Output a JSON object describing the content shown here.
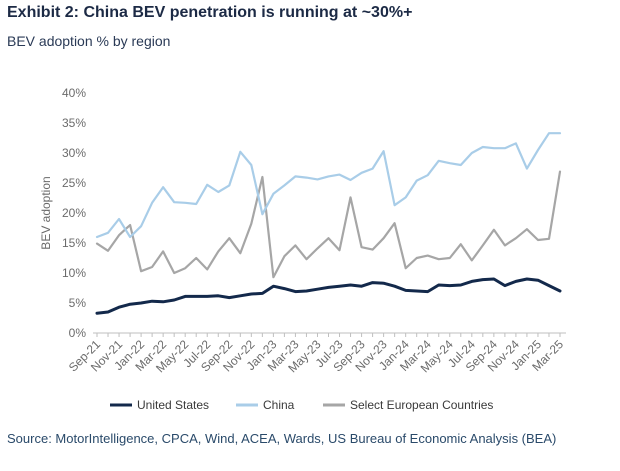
{
  "header": {
    "title": "Exhibit 2: China BEV penetration is running at ~30%+",
    "subtitle": "BEV adoption % by region"
  },
  "footer": {
    "source": "Source: MotorIntelligence, CPCA, Wind, ACEA, Wards, US Bureau of Economic Analysis (BEA)"
  },
  "colors": {
    "united_states": "#13294b",
    "china": "#a9cde8",
    "europe": "#a6a6a6",
    "axis": "#bfbfbf",
    "tick_text": "#6b6b6b"
  },
  "chart_data": {
    "type": "line",
    "title": "",
    "xlabel": "",
    "ylabel": "BEV adoption",
    "ylim": [
      0,
      40
    ],
    "yticks": [
      "0%",
      "5%",
      "10%",
      "15%",
      "20%",
      "25%",
      "30%",
      "35%",
      "40%"
    ],
    "grid": false,
    "legend_position": "bottom",
    "x": [
      "Sep-21",
      "Oct-21",
      "Nov-21",
      "Dec-21",
      "Jan-22",
      "Feb-22",
      "Mar-22",
      "Apr-22",
      "May-22",
      "Jun-22",
      "Jul-22",
      "Aug-22",
      "Sep-22",
      "Oct-22",
      "Nov-22",
      "Dec-22",
      "Jan-23",
      "Feb-23",
      "Mar-23",
      "Apr-23",
      "May-23",
      "Jun-23",
      "Jul-23",
      "Aug-23",
      "Sep-23",
      "Oct-23",
      "Nov-23",
      "Dec-23",
      "Jan-24",
      "Feb-24",
      "Mar-24",
      "Apr-24",
      "May-24",
      "Jun-24",
      "Jul-24",
      "Aug-24",
      "Sep-24",
      "Oct-24",
      "Nov-24",
      "Dec-24",
      "Jan-25",
      "Feb-25",
      "Mar-25"
    ],
    "x_tick_labels": [
      "Sep-21",
      "Nov-21",
      "Jan-22",
      "Mar-22",
      "May-22",
      "Jul-22",
      "Sep-22",
      "Nov-22",
      "Jan-23",
      "Mar-23",
      "May-23",
      "Jul-23",
      "Sep-23",
      "Nov-23",
      "Jan-24",
      "Mar-24",
      "May-24",
      "Jul-24",
      "Sep-24",
      "Nov-24",
      "Jan-25",
      "Mar-25"
    ],
    "series": [
      {
        "name": "United States",
        "color": "#13294b",
        "values": [
          3.3,
          3.5,
          4.3,
          4.8,
          5.0,
          5.3,
          5.2,
          5.5,
          6.1,
          6.1,
          6.1,
          6.2,
          5.9,
          6.2,
          6.5,
          6.6,
          7.8,
          7.4,
          6.9,
          7.0,
          7.3,
          7.6,
          7.8,
          8.0,
          7.8,
          8.4,
          8.3,
          7.8,
          7.1,
          7.0,
          6.9,
          8.0,
          7.9,
          8.0,
          8.6,
          8.9,
          9.0,
          7.9,
          8.6,
          9.0,
          8.8,
          7.9,
          7.0
        ]
      },
      {
        "name": "China",
        "color": "#a9cde8",
        "values": [
          16.0,
          16.7,
          19.0,
          16.0,
          17.8,
          21.7,
          24.3,
          21.8,
          21.7,
          21.5,
          24.7,
          23.5,
          24.6,
          30.2,
          28.0,
          19.8,
          23.2,
          24.6,
          26.1,
          25.9,
          25.6,
          26.1,
          26.4,
          25.5,
          26.7,
          27.4,
          30.3,
          21.3,
          22.6,
          25.4,
          26.3,
          28.7,
          28.3,
          28.0,
          30.0,
          31.0,
          30.8,
          30.8,
          31.6,
          27.4,
          30.5,
          33.3,
          33.3
        ]
      },
      {
        "name": "Select European Countries",
        "color": "#a6a6a6",
        "values": [
          14.9,
          13.7,
          16.3,
          18.0,
          10.3,
          11.0,
          13.6,
          10.0,
          10.8,
          12.5,
          10.6,
          13.6,
          15.8,
          13.3,
          18.2,
          26.0,
          9.3,
          12.8,
          14.6,
          12.3,
          14.1,
          15.8,
          13.8,
          22.6,
          14.3,
          13.9,
          15.8,
          18.3,
          10.8,
          12.5,
          12.9,
          12.3,
          12.5,
          14.8,
          12.1,
          14.6,
          17.2,
          14.6,
          15.8,
          17.3,
          15.5,
          15.7,
          26.9
        ]
      }
    ]
  }
}
